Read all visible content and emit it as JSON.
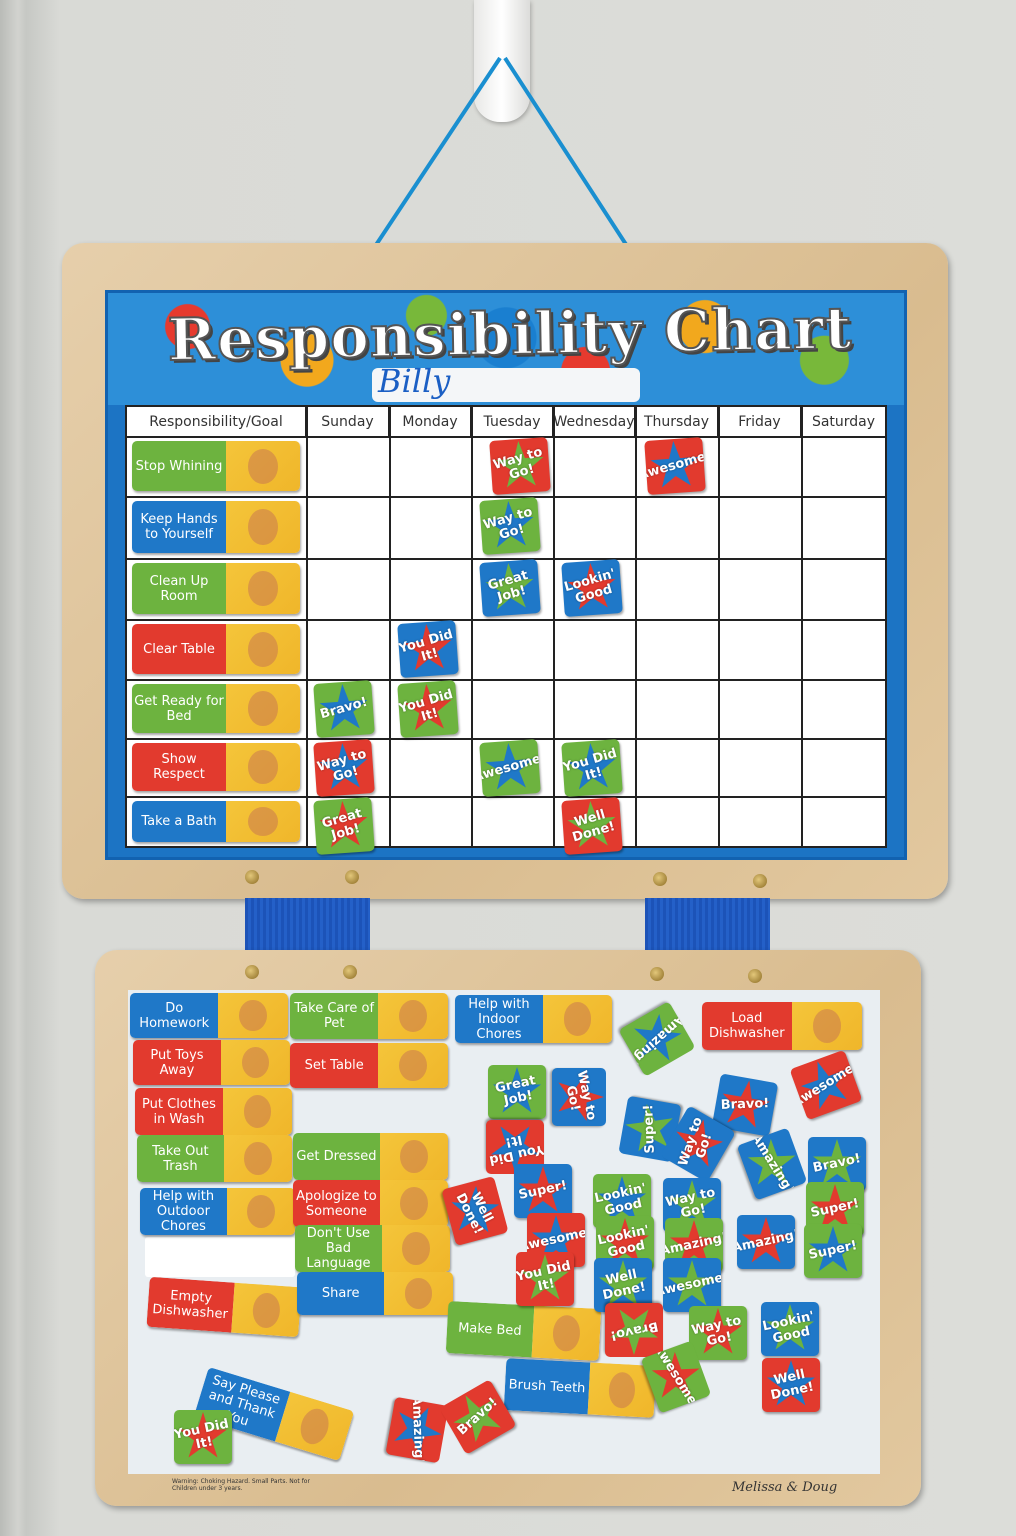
{
  "chart": {
    "title": "Responsibility Chart",
    "name": "Billy",
    "headers": [
      "Responsibility/Goal",
      "Sunday",
      "Monday",
      "Tuesday",
      "Wednesday",
      "Thursday",
      "Friday",
      "Saturday"
    ],
    "tasks": [
      {
        "label": "Stop Whining",
        "color": "#6db33f"
      },
      {
        "label": "Keep Hands to Yourself",
        "color": "#1f78c8"
      },
      {
        "label": "Clean Up Room",
        "color": "#6db33f"
      },
      {
        "label": "Clear Table",
        "color": "#e23a2e"
      },
      {
        "label": "Get Ready for Bed",
        "color": "#6db33f"
      },
      {
        "label": "Show Respect",
        "color": "#e23a2e"
      },
      {
        "label": "Take a Bath",
        "color": "#1f78c8"
      }
    ],
    "rewards": [
      {
        "row": 0,
        "day": "Tuesday",
        "text": "Way to Go!",
        "bg": "#e23a2e",
        "star": "#6db33f"
      },
      {
        "row": 0,
        "day": "Thursday",
        "text": "Awesome!",
        "bg": "#e23a2e",
        "star": "#1f78c8"
      },
      {
        "row": 1,
        "day": "Tuesday",
        "text": "Way to Go!",
        "bg": "#6db33f",
        "star": "#1f78c8"
      },
      {
        "row": 2,
        "day": "Tuesday",
        "text": "Great Job!",
        "bg": "#1f78c8",
        "star": "#6db33f"
      },
      {
        "row": 2,
        "day": "Wednesday",
        "text": "Lookin' Good",
        "bg": "#1f78c8",
        "star": "#e23a2e"
      },
      {
        "row": 3,
        "day": "Monday",
        "text": "You Did It!",
        "bg": "#1f78c8",
        "star": "#e23a2e"
      },
      {
        "row": 4,
        "day": "Sunday",
        "text": "Bravo!",
        "bg": "#6db33f",
        "star": "#1f78c8"
      },
      {
        "row": 4,
        "day": "Monday",
        "text": "You Did It!",
        "bg": "#6db33f",
        "star": "#e23a2e"
      },
      {
        "row": 5,
        "day": "Sunday",
        "text": "Way to Go!",
        "bg": "#e23a2e",
        "star": "#1f78c8"
      },
      {
        "row": 5,
        "day": "Tuesday",
        "text": "Awesome!",
        "bg": "#6db33f",
        "star": "#1f78c8"
      },
      {
        "row": 5,
        "day": "Wednesday",
        "text": "You Did It!",
        "bg": "#6db33f",
        "star": "#1f78c8"
      },
      {
        "row": 6,
        "day": "Sunday",
        "text": "Great Job!",
        "bg": "#6db33f",
        "star": "#e23a2e"
      },
      {
        "row": 6,
        "day": "Wednesday",
        "text": "Well Done!",
        "bg": "#e23a2e",
        "star": "#6db33f"
      }
    ]
  },
  "storage": {
    "chores": [
      "Do Homework",
      "Take Care of Pet",
      "Help with Indoor Chores",
      "Load Dishwasher",
      "Put Toys Away",
      "Set Table",
      "Put Clothes in Wash",
      "Take Out Trash",
      "Get Dressed",
      "Help with Outdoor Chores",
      "Apologize to Someone",
      "Don't Use Bad Language",
      "Empty Dishwasher",
      "Share",
      "Make Bed",
      "Brush Teeth",
      "Say Please and Thank You"
    ],
    "chore_colors": [
      "#1f78c8",
      "#6db33f",
      "#1f78c8",
      "#e23a2e",
      "#e23a2e",
      "#e23a2e",
      "#e23a2e",
      "#6db33f",
      "#6db33f",
      "#1f78c8",
      "#e23a2e",
      "#6db33f",
      "#e23a2e",
      "#1f78c8",
      "#6db33f",
      "#1f78c8",
      "#1f78c8"
    ],
    "rewards": [
      "Amazing!",
      "Great Job!",
      "Way to Go!",
      "Bravo!",
      "Awesome!",
      "Super!",
      "Way to Go!",
      "Amazing!",
      "You Did It!",
      "Bravo!",
      "Well Done!",
      "Super!",
      "Lookin' Good",
      "Way to Go!",
      "Super!",
      "Awesome!",
      "Lookin' Good",
      "Amazing!",
      "Amazing!",
      "Super!",
      "You Did It!",
      "Well Done!",
      "Awesome!",
      "Bravo!",
      "Way to Go!",
      "Lookin' Good",
      "Awesome!",
      "Well Done!",
      "Amazing!",
      "Bravo!",
      "You Did It!"
    ],
    "warning": "Warning: Choking Hazard. Small Parts. Not for Children under 3 years.",
    "brand": "Melissa & Doug"
  }
}
